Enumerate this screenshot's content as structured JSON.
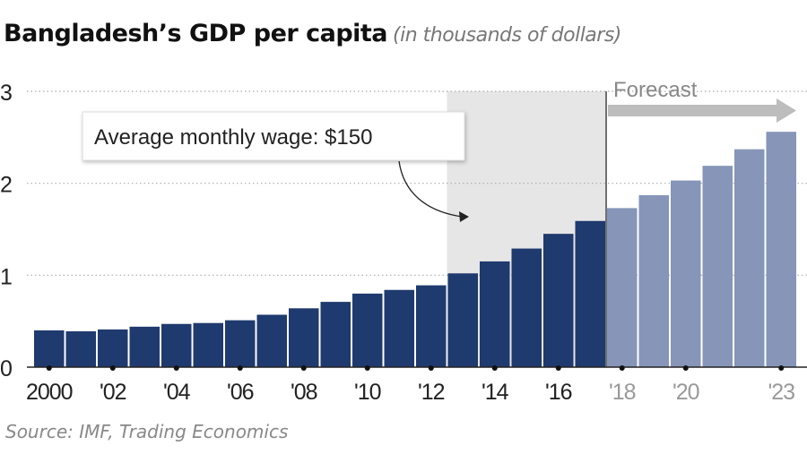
{
  "chart_data": {
    "type": "bar",
    "title": "Bangladesh’s GDP per capita",
    "subtitle": "(in thousands of dollars)",
    "source": "Source: IMF, Trading Economics",
    "categories": [
      "2000",
      "2001",
      "2002",
      "2003",
      "2004",
      "2005",
      "2006",
      "2007",
      "2008",
      "2009",
      "2010",
      "2011",
      "2012",
      "2013",
      "2014",
      "2015",
      "2016",
      "2017",
      "2018",
      "2019",
      "2020",
      "2021",
      "2022",
      "2023"
    ],
    "values": [
      0.4,
      0.39,
      0.41,
      0.44,
      0.47,
      0.48,
      0.51,
      0.57,
      0.64,
      0.71,
      0.8,
      0.84,
      0.89,
      1.02,
      1.15,
      1.29,
      1.45,
      1.59,
      1.73,
      1.87,
      2.03,
      2.19,
      2.37,
      2.56
    ],
    "forecast_from": "2018",
    "tick_labels": [
      {
        "category": "2000",
        "label": "2000"
      },
      {
        "category": "2002",
        "label": "'02"
      },
      {
        "category": "2004",
        "label": "'04"
      },
      {
        "category": "2006",
        "label": "'06"
      },
      {
        "category": "2008",
        "label": "'08"
      },
      {
        "category": "2010",
        "label": "'10"
      },
      {
        "category": "2012",
        "label": "'12"
      },
      {
        "category": "2014",
        "label": "'14"
      },
      {
        "category": "2016",
        "label": "'16"
      },
      {
        "category": "2018",
        "label": "'18"
      },
      {
        "category": "2020",
        "label": "'20"
      },
      {
        "category": "2023",
        "label": "'23"
      }
    ],
    "ylim": [
      0,
      3
    ],
    "yticks": [
      0,
      1,
      2,
      3
    ],
    "grid": true,
    "highlight_range": [
      "2013",
      "2017"
    ],
    "annotation": "Average monthly wage: $150",
    "forecast_label": "Forecast",
    "colors": {
      "actual": "#1f3a6e",
      "forecast": "#8695b8",
      "highlight": "#e6e6e6",
      "forecast_arrow": "#bdbdbd"
    }
  }
}
